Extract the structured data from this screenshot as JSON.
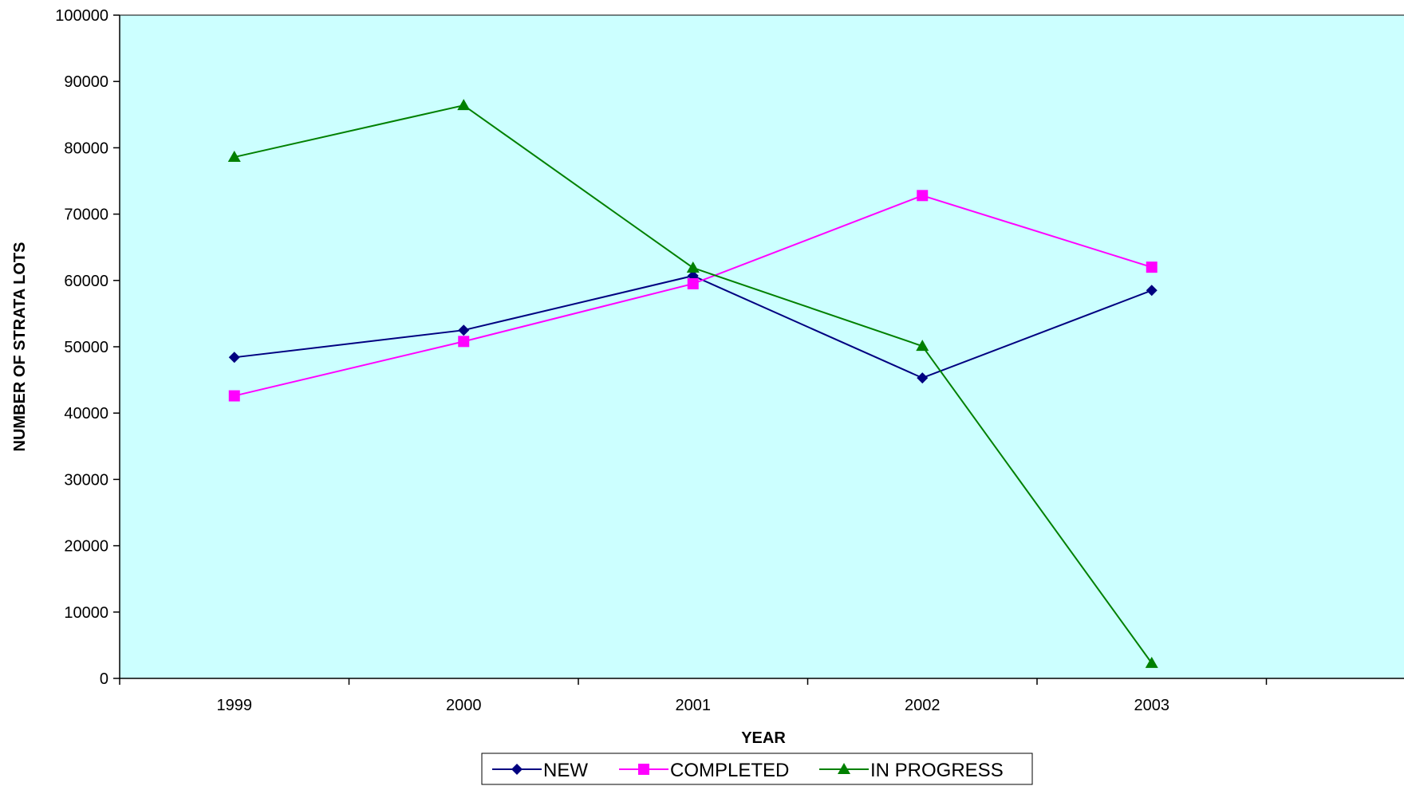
{
  "chart_data": {
    "type": "line",
    "categories": [
      "1999",
      "2000",
      "2001",
      "2002",
      "2003"
    ],
    "series": [
      {
        "name": "NEW",
        "values": [
          48400,
          52500,
          60700,
          45300,
          58500
        ],
        "color": "#000080",
        "marker": "diamond"
      },
      {
        "name": "COMPLETED",
        "values": [
          42600,
          50800,
          59500,
          72800,
          62000
        ],
        "color": "#FF00FF",
        "marker": "square"
      },
      {
        "name": "IN PROGRESS",
        "values": [
          78600,
          86400,
          61900,
          50100,
          2300
        ],
        "color": "#008000",
        "marker": "triangle"
      }
    ],
    "title": "",
    "xlabel": "YEAR",
    "ylabel": "NUMBER OF STRATA LOTS",
    "ylim": [
      0,
      100000
    ],
    "yticks": [
      "0",
      "10000",
      "20000",
      "30000",
      "40000",
      "50000",
      "60000",
      "70000",
      "80000",
      "90000",
      "100000"
    ],
    "plot_background": "#CCFFFF",
    "grid": false,
    "legend_position": "bottom"
  }
}
